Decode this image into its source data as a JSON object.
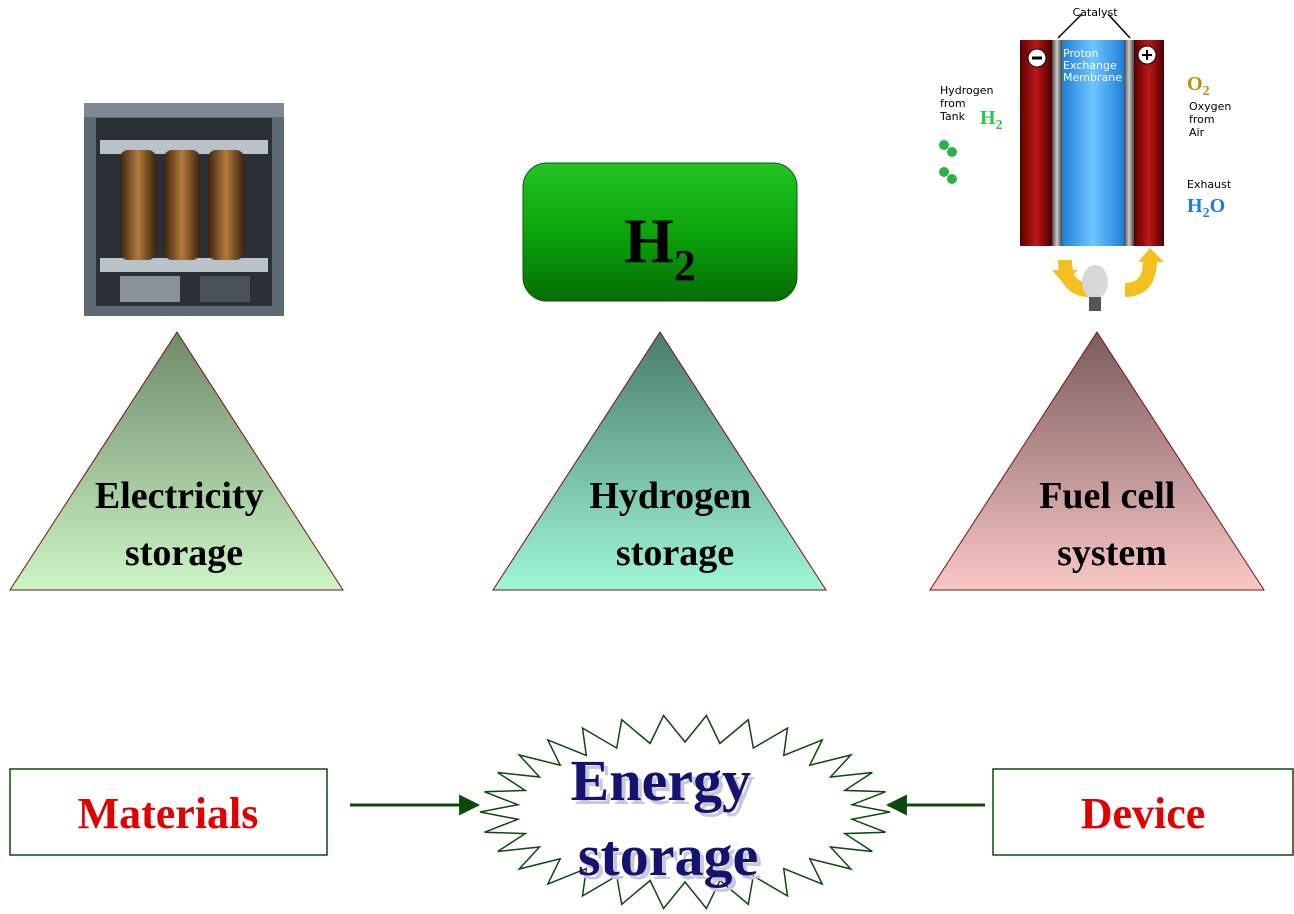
{
  "triangles": [
    {
      "lines": [
        "Electricity",
        "storage"
      ]
    },
    {
      "lines": [
        "Hydrogen",
        "storage"
      ]
    },
    {
      "lines": [
        "Fuel cell",
        "system"
      ]
    }
  ],
  "hydrogen_box": {
    "base": "H",
    "sub": "2"
  },
  "fuel_cell": {
    "catalyst": "Catalyst",
    "membrane": [
      "Proton",
      "Exchange",
      "Membrane"
    ],
    "hydrogen_source": [
      "Hydrogen",
      "from",
      "Tank"
    ],
    "hydrogen_formula": {
      "base": "H",
      "sub": "2"
    },
    "oxygen_formula": {
      "base": "O",
      "sub": "2"
    },
    "oxygen_source": [
      "Oxygen",
      "from",
      "Air"
    ],
    "exhaust": "Exhaust",
    "water_formula": {
      "base": "H",
      "sub": "2",
      "end": "O"
    }
  },
  "center": {
    "lines": [
      "Energy",
      "storage"
    ]
  },
  "left_box": "Materials",
  "right_box": "Device"
}
